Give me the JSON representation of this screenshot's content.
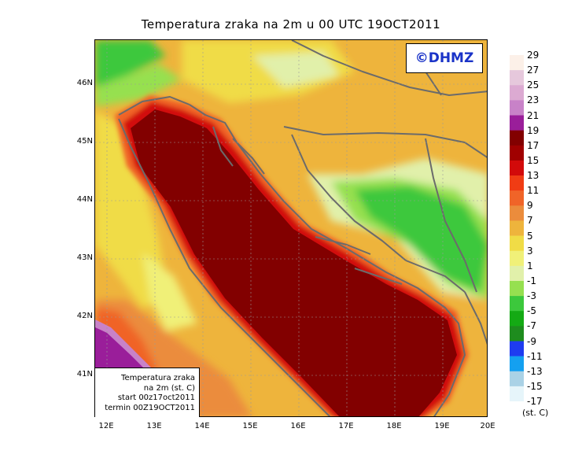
{
  "title": "Temperatura zraka na 2m u 00 UTC 19OCT2011",
  "logo": "©DHMZ",
  "info": {
    "line1": "Temperatura zraka",
    "line2": "na 2m (st. C)",
    "line3": "start 00z17oct2011",
    "line4": "termin 00Z19OCT2011"
  },
  "axes": {
    "lat_labels": [
      "46N",
      "45N",
      "44N",
      "43N",
      "42N",
      "41N"
    ],
    "lon_labels": [
      "12E",
      "13E",
      "14E",
      "15E",
      "16E",
      "17E",
      "18E",
      "19E",
      "20E"
    ],
    "lon_range": [
      11.8,
      20.0
    ],
    "lat_range": [
      40.3,
      46.8
    ]
  },
  "colorbar": {
    "labels": [
      "29",
      "27",
      "25",
      "23",
      "21",
      "19",
      "17",
      "15",
      "13",
      "11",
      "9",
      "7",
      "5",
      "3",
      "1",
      "-1",
      "-3",
      "-5",
      "-7",
      "-9",
      "-11",
      "-13",
      "-15",
      "-17"
    ],
    "colors": [
      "#fcf0e8",
      "#e6c8dc",
      "#dcaad2",
      "#c882c8",
      "#9a1e9a",
      "#820000",
      "#a00000",
      "#d20a0a",
      "#f03c14",
      "#f06428",
      "#eb8c3c",
      "#eeb43c",
      "#f0dc46",
      "#f0f078",
      "#e1f0aa",
      "#96e050",
      "#3cc83c",
      "#14aa14",
      "#1e8c1e",
      "#1e3cf0",
      "#14a0f0",
      "#aad2e6",
      "#e6f5fa"
    ],
    "units": "(st. C)"
  }
}
